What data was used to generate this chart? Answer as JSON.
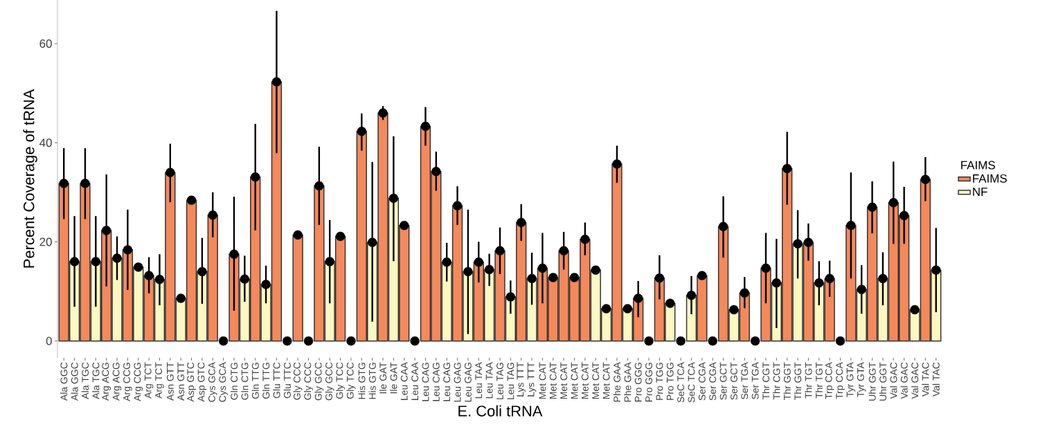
{
  "chart_data": {
    "type": "bar",
    "xlabel": "E. Coli tRNA",
    "ylabel": "Percent Coverage of tRNA",
    "legend_title": "FAIMS",
    "legend": "right",
    "marker": "circle",
    "categories": [
      "Ala GGC",
      "Ala GGC",
      "Ala TGC",
      "Ala TGC",
      "Arg ACG",
      "Arg ACG",
      "Arg CCG",
      "Arg CCG",
      "Arg TCT",
      "Arg TCT",
      "Asn GTT",
      "Asn GTT",
      "Asp GTC",
      "Asp GTC",
      "Cys GCA",
      "Cys GCA",
      "Gln CTG",
      "Gln CTG",
      "Gln TTG",
      "Gln TTG",
      "Glu TTC",
      "Glu TTC",
      "Gly CCC",
      "Gly CCC",
      "Gly GCC",
      "Gly GCC",
      "Gly TCC",
      "Gly TCC",
      "His GTG",
      "His GTG",
      "Ile GAT",
      "Ile GAT",
      "Leu CAA",
      "Leu CAA",
      "Leu CAG",
      "Leu CAG",
      "Leu CAG",
      "Leu GAG",
      "Leu GAG",
      "Leu TAA",
      "Leu TAA",
      "Leu TAG",
      "Leu TAG",
      "Lys TTT",
      "Lys TTT",
      "Met CAT",
      "Met CAT",
      "Met CAT",
      "Met CAT",
      "Met CAT",
      "Met CAT",
      "Met CAT",
      "Phe GAA",
      "Phe GAA",
      "Pro GGG",
      "Pro GGG",
      "Pro TGG",
      "Pro TGG",
      "SeC TCA",
      "SeC TCA",
      "Ser CGA",
      "Ser CGA",
      "Ser GCT",
      "Ser GCT",
      "Ser TGA",
      "Ser TGA",
      "Thr CGT",
      "Thr CGT",
      "Thr GGT",
      "Thr GGT",
      "Thr TGT",
      "Thr TGT",
      "Trp CCA",
      "Trp CCA",
      "Tyr GTA",
      "Tyr GTA",
      "Uhr GGT",
      "Uhr GGT",
      "Val GAC",
      "Val GAC",
      "Val GAC",
      "Val TAC",
      "Val TAC"
    ],
    "ylim": [
      -3.4,
      68.8
    ],
    "yticks": [
      0,
      20,
      40,
      60
    ],
    "series": [
      {
        "name": "FAIMS",
        "color": "#f4895b",
        "values": [
          31.8,
          null,
          31.8,
          null,
          22.3,
          null,
          18.4,
          null,
          13.2,
          null,
          34.0,
          null,
          28.4,
          null,
          25.4,
          null,
          17.5,
          null,
          33.1,
          null,
          52.3,
          null,
          21.4,
          null,
          31.3,
          null,
          21.1,
          null,
          42.3,
          null,
          46.0,
          null,
          23.3,
          null,
          43.3,
          34.2,
          null,
          27.3,
          null,
          15.9,
          null,
          18.2,
          null,
          23.9,
          null,
          14.7,
          12.8,
          18.2,
          12.8,
          20.5,
          null,
          null,
          35.7,
          null,
          8.6,
          null,
          12.7,
          null,
          null,
          null,
          13.2,
          null,
          23.1,
          null,
          9.7,
          null,
          14.7,
          null,
          34.8,
          null,
          19.9,
          null,
          12.6,
          null,
          23.3,
          null,
          27.0,
          null,
          27.9,
          25.3,
          null,
          32.6,
          null
        ]
      },
      {
        "name": "NF",
        "color": "#fcf8c2",
        "values": [
          null,
          16.0,
          null,
          16.0,
          null,
          16.7,
          null,
          14.9,
          null,
          12.4,
          null,
          8.6,
          null,
          14.0,
          null,
          null,
          null,
          12.5,
          null,
          11.4,
          null,
          null,
          null,
          null,
          null,
          16.0,
          null,
          null,
          null,
          19.9,
          null,
          28.8,
          null,
          null,
          null,
          null,
          15.9,
          null,
          14.0,
          null,
          14.4,
          null,
          8.9,
          null,
          12.6,
          null,
          null,
          null,
          null,
          null,
          14.3,
          6.5,
          null,
          6.5,
          null,
          null,
          null,
          7.6,
          null,
          9.2,
          null,
          null,
          null,
          6.3,
          null,
          null,
          null,
          11.7,
          null,
          19.6,
          null,
          11.7,
          null,
          null,
          null,
          10.4,
          null,
          12.6,
          null,
          null,
          6.3,
          null,
          14.3
        ]
      },
      {
        "type": "scatter",
        "color": "#000000",
        "values": [
          31.8,
          16.0,
          31.8,
          16.0,
          22.3,
          16.7,
          18.4,
          14.9,
          13.2,
          12.4,
          34.0,
          8.6,
          28.4,
          14.0,
          25.4,
          0,
          17.5,
          12.5,
          33.1,
          11.4,
          52.3,
          0,
          21.4,
          0,
          31.3,
          16.0,
          21.1,
          0,
          42.3,
          19.9,
          46.0,
          28.8,
          23.3,
          0,
          43.3,
          34.2,
          15.9,
          27.3,
          14.0,
          15.9,
          14.4,
          18.2,
          8.9,
          23.9,
          12.6,
          14.7,
          12.8,
          18.2,
          12.8,
          20.5,
          14.3,
          6.5,
          35.7,
          6.5,
          8.6,
          0,
          12.7,
          7.6,
          0,
          9.2,
          13.2,
          0,
          23.1,
          6.3,
          9.7,
          0,
          14.7,
          11.7,
          34.8,
          19.6,
          19.9,
          11.7,
          12.6,
          0,
          23.3,
          10.4,
          27.0,
          12.6,
          27.9,
          25.3,
          6.3,
          32.6,
          14.3
        ],
        "errors": [
          [
            24.6,
            38.9
          ],
          [
            6.9,
            25.2
          ],
          [
            24.6,
            38.9
          ],
          [
            6.9,
            25.2
          ],
          [
            11.0,
            33.6
          ],
          [
            12.3,
            21.1
          ],
          [
            10.3,
            26.5
          ],
          null,
          [
            9.6,
            16.9
          ],
          [
            7.2,
            17.5
          ],
          [
            28.0,
            39.8
          ],
          null,
          null,
          [
            7.5,
            20.8
          ],
          [
            20.9,
            30.0
          ],
          null,
          [
            6.1,
            29.1
          ],
          [
            7.9,
            17.2
          ],
          [
            22.3,
            43.8
          ],
          [
            7.6,
            15.2
          ],
          [
            37.9,
            66.6
          ],
          null,
          null,
          null,
          [
            23.4,
            39.2
          ],
          [
            7.6,
            24.4
          ],
          null,
          null,
          [
            38.4,
            45.9
          ],
          [
            3.9,
            36.1
          ],
          [
            44.6,
            47.4
          ],
          [
            16.1,
            41.3
          ],
          null,
          null,
          [
            39.4,
            47.2
          ],
          [
            30.3,
            38.2
          ],
          [
            12.0,
            19.8
          ],
          [
            23.4,
            31.2
          ],
          [
            1.4,
            26.5
          ],
          [
            11.8,
            20.0
          ],
          [
            11.1,
            17.6
          ],
          [
            13.5,
            22.9
          ],
          [
            5.5,
            12.2
          ],
          [
            20.2,
            27.6
          ],
          [
            7.3,
            17.8
          ],
          [
            7.6,
            21.8
          ],
          null,
          [
            14.4,
            22.0
          ],
          null,
          [
            17.3,
            23.9
          ],
          null,
          null,
          [
            31.9,
            39.4
          ],
          null,
          [
            4.8,
            12.1
          ],
          null,
          [
            8.4,
            17.3
          ],
          null,
          null,
          [
            5.4,
            13.1
          ],
          null,
          null,
          [
            16.8,
            29.2
          ],
          null,
          [
            6.6,
            12.9
          ],
          null,
          [
            7.6,
            21.8
          ],
          [
            2.6,
            20.6
          ],
          [
            27.5,
            42.2
          ],
          [
            12.6,
            26.4
          ],
          [
            16.2,
            23.7
          ],
          [
            7.2,
            16.1
          ],
          [
            8.9,
            16.2
          ],
          null,
          [
            12.6,
            34.0
          ],
          [
            5.5,
            15.3
          ],
          [
            21.7,
            32.2
          ],
          [
            7.2,
            17.9
          ],
          [
            19.6,
            36.2
          ],
          [
            19.6,
            31.1
          ],
          null,
          [
            28.2,
            37.1
          ],
          [
            5.8,
            22.8
          ]
        ]
      }
    ]
  }
}
